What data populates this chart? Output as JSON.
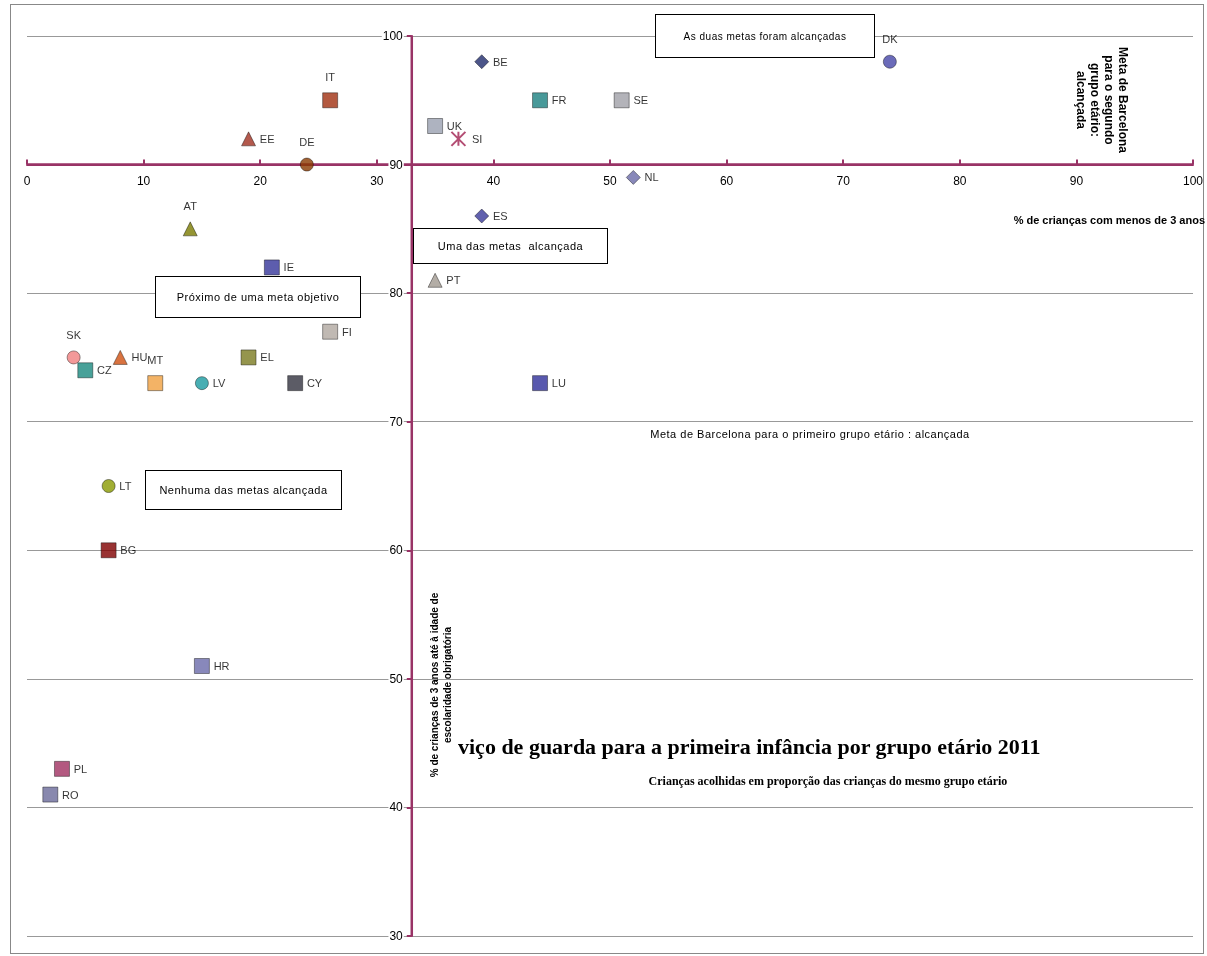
{
  "chart_data": {
    "type": "scatter",
    "title": "viço de guarda para a primeira infância por grupo etário 2011",
    "subtitle": "Crianças acolhidas em proporção das crianças do mesmo grupo etário",
    "xlabel": "% de crianças com menos de 3 anos",
    "ylabel": "% de crianças de 3 anos até à idade de escolaridade obrigatória",
    "xlim": [
      0,
      100
    ],
    "xticks": [
      0,
      10,
      20,
      30,
      40,
      50,
      60,
      70,
      80,
      90,
      100
    ],
    "ylim": [
      30,
      100
    ],
    "yticks": [
      30,
      40,
      50,
      60,
      70,
      80,
      90,
      100
    ],
    "grid": "y",
    "ref_lines": [
      {
        "axis": "y",
        "value": 90,
        "label": "Meta de Barcelona para o segundo grupo etário: alcançada",
        "color": "#993366"
      },
      {
        "axis": "x",
        "value": 33,
        "color": "#993366"
      }
    ],
    "annotations": [
      "As duas metas foram alcançadas",
      "Uma das metas  alcançada",
      "Próximo de uma meta objetivo",
      "Nenhuma das metas alcançada",
      "Meta de Barcelona para o primeiro grupo etário : alcançada"
    ],
    "series": [
      {
        "name": "DK",
        "color": "#4646a8",
        "marker": "circle",
        "x": [
          74
        ],
        "values": [
          98
        ]
      },
      {
        "name": "BE",
        "color": "#1f2a6b",
        "marker": "diamond",
        "x": [
          39
        ],
        "values": [
          98
        ]
      },
      {
        "name": "IT",
        "color": "#a03010",
        "marker": "square",
        "x": [
          26
        ],
        "values": [
          95
        ]
      },
      {
        "name": "FR",
        "color": "#1a8080",
        "marker": "square",
        "x": [
          44
        ],
        "values": [
          95
        ]
      },
      {
        "name": "SE",
        "color": "#a0a0a8",
        "marker": "square",
        "x": [
          51
        ],
        "values": [
          95
        ]
      },
      {
        "name": "UK",
        "color": "#9aa0b0",
        "marker": "square",
        "x": [
          35
        ],
        "values": [
          93
        ]
      },
      {
        "name": "SI",
        "color": "#a02050",
        "marker": "cross",
        "x": [
          37
        ],
        "values": [
          92
        ]
      },
      {
        "name": "EE",
        "color": "#a03020",
        "marker": "triangle",
        "x": [
          19
        ],
        "values": [
          92
        ]
      },
      {
        "name": "DE",
        "color": "#8a3a00",
        "marker": "circle",
        "x": [
          24
        ],
        "values": [
          90
        ]
      },
      {
        "name": "NL",
        "color": "#6a6aa8",
        "marker": "diamond",
        "x": [
          52
        ],
        "values": [
          89
        ]
      },
      {
        "name": "ES",
        "color": "#3a3a9a",
        "marker": "diamond",
        "x": [
          39
        ],
        "values": [
          86
        ]
      },
      {
        "name": "AT",
        "color": "#7a7a00",
        "marker": "triangle",
        "x": [
          14
        ],
        "values": [
          85
        ]
      },
      {
        "name": "IE",
        "color": "#34349a",
        "marker": "square",
        "x": [
          21
        ],
        "values": [
          82
        ]
      },
      {
        "name": "PT",
        "color": "#a09890",
        "marker": "triangle",
        "x": [
          35
        ],
        "values": [
          81
        ]
      },
      {
        "name": "FI",
        "color": "#b0a8a0",
        "marker": "square",
        "x": [
          26
        ],
        "values": [
          77
        ]
      },
      {
        "name": "SK",
        "color": "#f08080",
        "marker": "circle",
        "x": [
          4
        ],
        "values": [
          75
        ]
      },
      {
        "name": "HU",
        "color": "#d05010",
        "marker": "triangle",
        "x": [
          8
        ],
        "values": [
          75
        ]
      },
      {
        "name": "EL",
        "color": "#7a7a20",
        "marker": "square",
        "x": [
          19
        ],
        "values": [
          75
        ]
      },
      {
        "name": "CZ",
        "color": "#1a8a80",
        "marker": "square",
        "x": [
          5
        ],
        "values": [
          74
        ]
      },
      {
        "name": "MT",
        "color": "#f0a040",
        "marker": "square",
        "x": [
          11
        ],
        "values": [
          73
        ]
      },
      {
        "name": "LV",
        "color": "#1a9aa0",
        "marker": "circle",
        "x": [
          15
        ],
        "values": [
          73
        ]
      },
      {
        "name": "CY",
        "color": "#333340",
        "marker": "square",
        "x": [
          23
        ],
        "values": [
          73
        ]
      },
      {
        "name": "LU",
        "color": "#30309a",
        "marker": "square",
        "x": [
          44
        ],
        "values": [
          73
        ]
      },
      {
        "name": "LT",
        "color": "#8a9a00",
        "marker": "circle",
        "x": [
          7
        ],
        "values": [
          65
        ]
      },
      {
        "name": "BG",
        "color": "#800000",
        "marker": "square",
        "x": [
          7
        ],
        "values": [
          60
        ]
      },
      {
        "name": "HR",
        "color": "#6a6aaa",
        "marker": "square",
        "x": [
          15
        ],
        "values": [
          51
        ]
      },
      {
        "name": "PL",
        "color": "#a03060",
        "marker": "square",
        "x": [
          3
        ],
        "values": [
          43
        ]
      },
      {
        "name": "RO",
        "color": "#6a6a9a",
        "marker": "square",
        "x": [
          2
        ],
        "values": [
          41
        ]
      }
    ]
  }
}
